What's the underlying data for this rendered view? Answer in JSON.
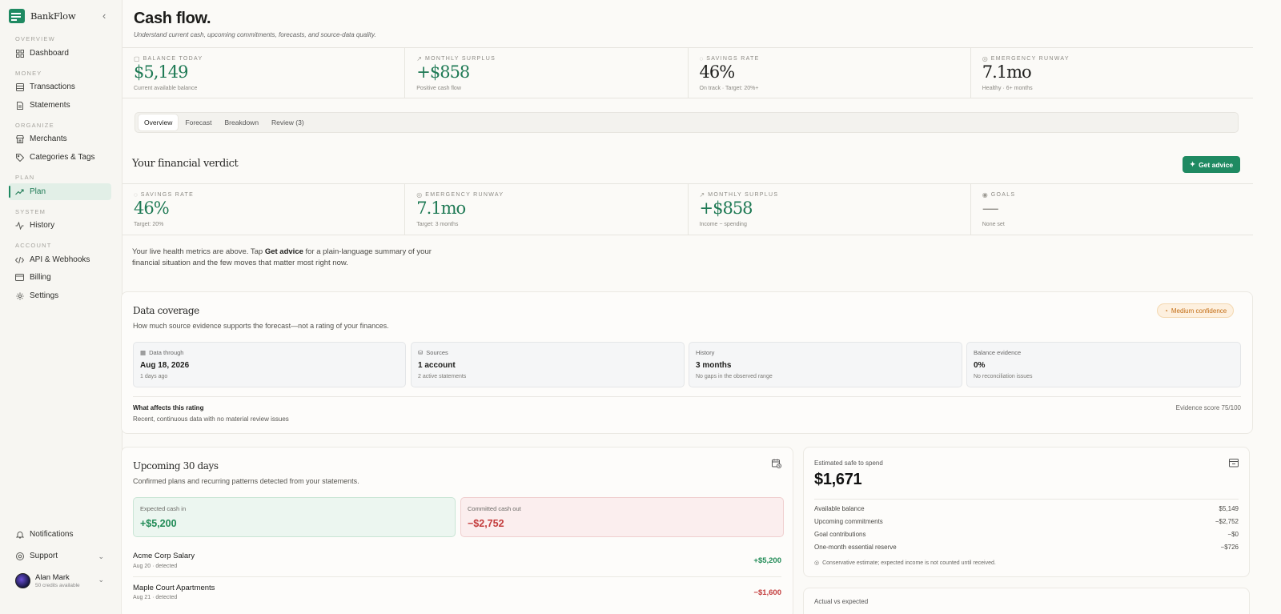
{
  "brand": {
    "name": "BankFlow"
  },
  "sidebar": {
    "sections": [
      "Overview",
      "Money",
      "Organize",
      "Plan",
      "System",
      "Account"
    ],
    "items": [
      {
        "label": "Dashboard",
        "icon": "grid-icon"
      },
      {
        "label": "Transactions",
        "icon": "list-icon"
      },
      {
        "label": "Statements",
        "icon": "document-icon"
      },
      {
        "label": "Merchants",
        "icon": "store-icon"
      },
      {
        "label": "Categories & Tags",
        "icon": "tag-icon"
      },
      {
        "label": "Plan",
        "icon": "trend-icon"
      },
      {
        "label": "History",
        "icon": "activity-icon"
      },
      {
        "label": "API & Webhooks",
        "icon": "code-icon"
      },
      {
        "label": "Billing",
        "icon": "card-icon"
      },
      {
        "label": "Settings",
        "icon": "gear-icon"
      }
    ],
    "notifications": "Notifications",
    "support": "Support",
    "user": {
      "name": "Alan Mark",
      "credits": "50 credits available"
    }
  },
  "page": {
    "title": "Cash flow.",
    "subtitle": "Understand current cash, upcoming commitments, forecasts, and source-data quality."
  },
  "top_stats": [
    {
      "label": "Balance today",
      "value": "$5,149",
      "note": "Current available balance"
    },
    {
      "label": "Monthly surplus",
      "value": "+$858",
      "note": "Positive cash flow"
    },
    {
      "label": "Savings rate",
      "value": "46%",
      "note": "On track · Target: 20%+"
    },
    {
      "label": "Emergency runway",
      "value": "7.1mo",
      "note": "Healthy · 6+ months"
    }
  ],
  "tabs": [
    "Overview",
    "Forecast",
    "Breakdown",
    "Review (3)"
  ],
  "verdict": {
    "title": "Your financial verdict",
    "advice_button": "Get advice",
    "stats": [
      {
        "label": "Savings rate",
        "value": "46%",
        "note": "Target: 20%"
      },
      {
        "label": "Emergency runway",
        "value": "7.1mo",
        "note": "Target: 3 months"
      },
      {
        "label": "Monthly surplus",
        "value": "+$858",
        "note": "Income − spending"
      },
      {
        "label": "Goals",
        "value": "—",
        "note": "None set"
      }
    ],
    "text_before": "Your live health metrics are above. Tap ",
    "text_bold": "Get advice",
    "text_after": " for a plain-language summary of your financial situation and the few moves that matter most right now."
  },
  "coverage": {
    "title": "Data coverage",
    "subtitle": "How much source evidence supports the forecast—not a rating of your finances.",
    "badge": "Medium confidence",
    "boxes": [
      {
        "label": "Data through",
        "value": "Aug 18, 2026",
        "note": "1 days ago"
      },
      {
        "label": "Sources",
        "value": "1 account",
        "note": "2 active statements"
      },
      {
        "label": "History",
        "value": "3 months",
        "note": "No gaps in the observed range"
      },
      {
        "label": "Balance evidence",
        "value": "0%",
        "note": "No reconciliation issues"
      }
    ],
    "affects_title": "What affects this rating",
    "affects_sub": "Recent, continuous data with no material review issues",
    "evidence_score": "Evidence score 75/100"
  },
  "upcoming": {
    "title": "Upcoming 30 days",
    "subtitle": "Confirmed plans and recurring patterns detected from your statements.",
    "cash_in_label": "Expected cash in",
    "cash_in_value": "+$5,200",
    "cash_out_label": "Committed cash out",
    "cash_out_value": "−$2,752",
    "rows": [
      {
        "name": "Acme Corp Salary",
        "meta": "Aug 20 · detected",
        "amount": "+$5,200"
      },
      {
        "name": "Maple Court Apartments",
        "meta": "Aug 21 · detected",
        "amount": "−$1,600"
      }
    ]
  },
  "safe_spend": {
    "label": "Estimated safe to spend",
    "value": "$1,671",
    "lines": [
      {
        "label": "Available balance",
        "value": "$5,149"
      },
      {
        "label": "Upcoming commitments",
        "value": "−$2,752"
      },
      {
        "label": "Goal contributions",
        "value": "−$0"
      },
      {
        "label": "One-month essential reserve",
        "value": "−$726"
      }
    ],
    "footnote": "Conservative estimate; expected income is not counted until received."
  },
  "peek_card": {
    "title": "Actual vs expected"
  },
  "colors": {
    "accent": "#1f8a62",
    "positive": "#1f8a55",
    "negative": "#c33b3b",
    "warning": "#c26c13"
  }
}
